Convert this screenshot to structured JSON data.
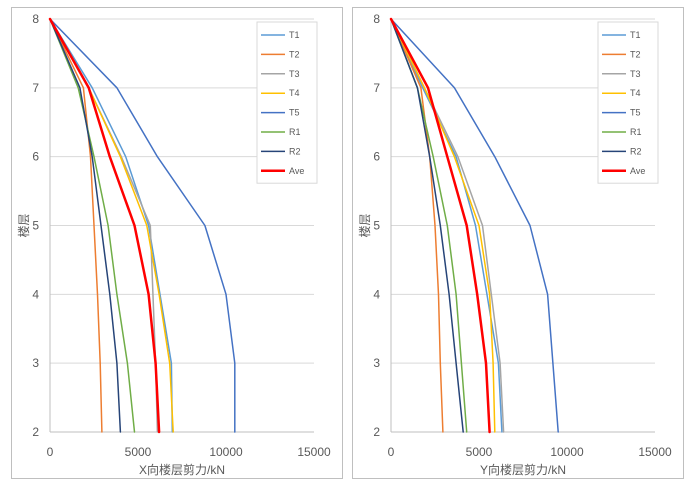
{
  "chart_data": [
    {
      "type": "line",
      "xlabel": "X向楼层剪力/kN",
      "ylabel": "楼层",
      "xlim": [
        0,
        15000
      ],
      "ylim": [
        2,
        8
      ],
      "xticks": [
        0,
        5000,
        10000,
        15000
      ],
      "yticks": [
        2,
        3,
        4,
        5,
        6,
        7,
        8
      ],
      "grid": "horizontal",
      "legend_position": "top-right",
      "series": [
        {
          "name": "T1",
          "color": "#5B9BD5",
          "width": 1.5,
          "points": [
            [
              6950,
              2
            ],
            [
              6900,
              3
            ],
            [
              5600,
              5
            ],
            [
              4300,
              6
            ],
            [
              2400,
              7
            ],
            [
              0,
              8
            ]
          ]
        },
        {
          "name": "T2",
          "color": "#ED7D31",
          "width": 1.5,
          "points": [
            [
              2950,
              2
            ],
            [
              2850,
              3
            ],
            [
              2700,
              4
            ],
            [
              2500,
              5
            ],
            [
              2300,
              6
            ],
            [
              1900,
              7
            ],
            [
              0,
              8
            ]
          ]
        },
        {
          "name": "T3",
          "color": "#A5A5A5",
          "width": 1.5,
          "points": [
            [
              6100,
              2
            ],
            [
              6000,
              3
            ],
            [
              5700,
              5
            ],
            [
              4050,
              6
            ],
            [
              2200,
              7
            ],
            [
              0,
              8
            ]
          ]
        },
        {
          "name": "T4",
          "color": "#FFC000",
          "width": 1.5,
          "points": [
            [
              7000,
              2
            ],
            [
              6800,
              3
            ],
            [
              6200,
              4
            ],
            [
              5500,
              5
            ],
            [
              4000,
              6
            ],
            [
              2200,
              7
            ],
            [
              0,
              8
            ]
          ]
        },
        {
          "name": "T5",
          "color": "#4472C4",
          "width": 1.5,
          "points": [
            [
              10500,
              2
            ],
            [
              10500,
              3
            ],
            [
              10000,
              4
            ],
            [
              8800,
              5
            ],
            [
              6100,
              6
            ],
            [
              3800,
              7
            ],
            [
              0,
              8
            ]
          ]
        },
        {
          "name": "R1",
          "color": "#70AD47",
          "width": 1.5,
          "points": [
            [
              4800,
              2
            ],
            [
              4400,
              3
            ],
            [
              3800,
              4
            ],
            [
              3300,
              5
            ],
            [
              2500,
              6
            ],
            [
              1600,
              7
            ],
            [
              0,
              8
            ]
          ]
        },
        {
          "name": "R2",
          "color": "#264478",
          "width": 1.5,
          "points": [
            [
              4000,
              2
            ],
            [
              3800,
              3
            ],
            [
              3400,
              4
            ],
            [
              2900,
              5
            ],
            [
              2400,
              6
            ],
            [
              1700,
              7
            ],
            [
              0,
              8
            ]
          ]
        },
        {
          "name": "Ave",
          "color": "#FF0000",
          "width": 2.5,
          "points": [
            [
              6200,
              2
            ],
            [
              6000,
              3
            ],
            [
              5600,
              4
            ],
            [
              4800,
              5
            ],
            [
              3400,
              6
            ],
            [
              2200,
              7
            ],
            [
              0,
              8
            ]
          ]
        }
      ]
    },
    {
      "type": "line",
      "xlabel": "Y向楼层剪力/kN",
      "ylabel": "楼层",
      "xlim": [
        0,
        15000
      ],
      "ylim": [
        2,
        8
      ],
      "xticks": [
        0,
        5000,
        10000,
        15000
      ],
      "yticks": [
        2,
        3,
        4,
        5,
        6,
        7,
        8
      ],
      "grid": "horizontal",
      "legend_position": "top-right",
      "series": [
        {
          "name": "T1",
          "color": "#5B9BD5",
          "width": 1.5,
          "points": [
            [
              6300,
              2
            ],
            [
              6100,
              3
            ],
            [
              4800,
              5
            ],
            [
              3700,
              6
            ],
            [
              1800,
              7
            ],
            [
              0,
              8
            ]
          ]
        },
        {
          "name": "T2",
          "color": "#ED7D31",
          "width": 1.5,
          "points": [
            [
              2950,
              2
            ],
            [
              2800,
              3
            ],
            [
              2700,
              4
            ],
            [
              2500,
              5
            ],
            [
              2200,
              6
            ],
            [
              1700,
              7
            ],
            [
              0,
              8
            ]
          ]
        },
        {
          "name": "T3",
          "color": "#A5A5A5",
          "width": 1.5,
          "points": [
            [
              6400,
              2
            ],
            [
              6200,
              3
            ],
            [
              5200,
              5
            ],
            [
              3800,
              6
            ],
            [
              1900,
              7
            ],
            [
              0,
              8
            ]
          ]
        },
        {
          "name": "T4",
          "color": "#FFC000",
          "width": 1.5,
          "points": [
            [
              5900,
              2
            ],
            [
              5800,
              3
            ],
            [
              5600,
              4
            ],
            [
              5000,
              5
            ],
            [
              3600,
              6
            ],
            [
              1900,
              7
            ],
            [
              0,
              8
            ]
          ]
        },
        {
          "name": "T5",
          "color": "#4472C4",
          "width": 1.5,
          "points": [
            [
              9500,
              2
            ],
            [
              9200,
              3
            ],
            [
              8900,
              4
            ],
            [
              7900,
              5
            ],
            [
              5900,
              6
            ],
            [
              3600,
              7
            ],
            [
              0,
              8
            ]
          ]
        },
        {
          "name": "R1",
          "color": "#70AD47",
          "width": 1.5,
          "points": [
            [
              4300,
              2
            ],
            [
              4000,
              3
            ],
            [
              3700,
              4
            ],
            [
              3200,
              5
            ],
            [
              2400,
              6
            ],
            [
              1500,
              7
            ],
            [
              0,
              8
            ]
          ]
        },
        {
          "name": "R2",
          "color": "#264478",
          "width": 1.5,
          "points": [
            [
              4100,
              2
            ],
            [
              3700,
              3
            ],
            [
              3300,
              4
            ],
            [
              2800,
              5
            ],
            [
              2200,
              6
            ],
            [
              1500,
              7
            ],
            [
              0,
              8
            ]
          ]
        },
        {
          "name": "Ave",
          "color": "#FF0000",
          "width": 2.5,
          "points": [
            [
              5600,
              2
            ],
            [
              5400,
              3
            ],
            [
              4900,
              4
            ],
            [
              4300,
              5
            ],
            [
              3200,
              6
            ],
            [
              2100,
              7
            ],
            [
              0,
              8
            ]
          ]
        }
      ]
    }
  ]
}
